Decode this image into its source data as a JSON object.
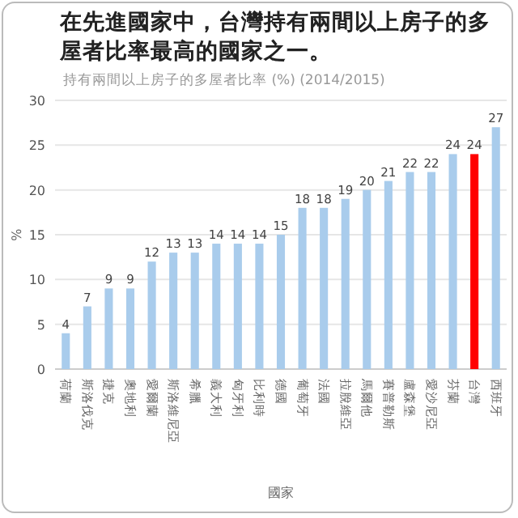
{
  "chart_data": {
    "type": "bar",
    "title": "在先進國家中，台灣持有兩間以上房子的多屋者比率最高的國家之一。",
    "subtitle": "持有兩間以上房子的多屋者比率 (%) (2014/2015)",
    "xlabel": "國家",
    "ylabel": "%",
    "categories": [
      "荷蘭",
      "斯洛伐克",
      "捷克",
      "奧地利",
      "愛爾蘭",
      "斯洛維尼亞",
      "希臘",
      "義大利",
      "匈牙利",
      "比利時",
      "德國",
      "葡萄牙",
      "法國",
      "拉脫維亞",
      "馬爾他",
      "賽普勒斯",
      "盧森堡",
      "愛沙尼亞",
      "芬蘭",
      "台灣",
      "西班牙"
    ],
    "values": [
      4,
      7,
      9,
      9,
      12,
      13,
      13,
      14,
      14,
      14,
      15,
      18,
      18,
      19,
      20,
      21,
      22,
      22,
      24,
      24,
      27
    ],
    "colors": [
      "#a9ccec",
      "#a9ccec",
      "#a9ccec",
      "#a9ccec",
      "#a9ccec",
      "#a9ccec",
      "#a9ccec",
      "#a9ccec",
      "#a9ccec",
      "#a9ccec",
      "#a9ccec",
      "#a9ccec",
      "#a9ccec",
      "#a9ccec",
      "#a9ccec",
      "#a9ccec",
      "#a9ccec",
      "#a9ccec",
      "#a9ccec",
      "#ff0000",
      "#a9ccec"
    ],
    "ylim": [
      0,
      30
    ],
    "yticks": [
      0,
      5,
      10,
      15,
      20,
      25,
      30
    ],
    "grid": "y",
    "data_labels": true
  }
}
